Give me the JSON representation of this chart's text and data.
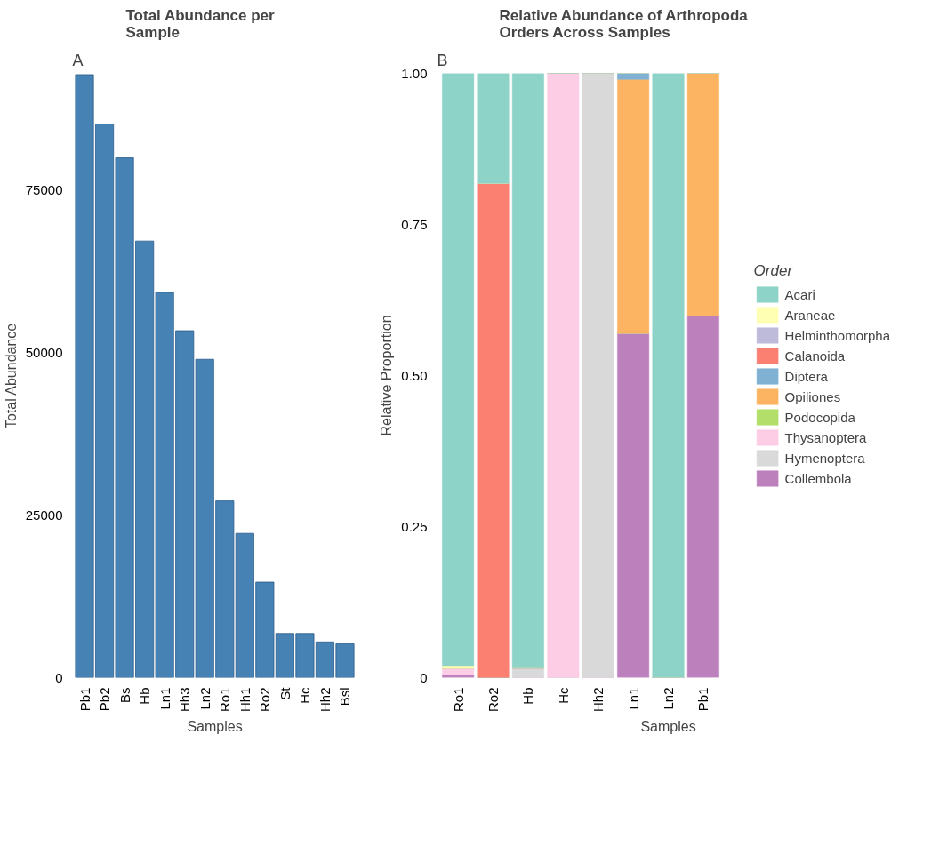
{
  "chart_data": [
    {
      "type": "bar",
      "title": "Total Abundance per Sample",
      "xlabel": "Samples",
      "ylabel": "Total Abundance",
      "annotations": [
        "A"
      ],
      "categories": [
        "Pb1",
        "Pb2",
        "Bs",
        "Hb",
        "Ln1",
        "Hh3",
        "Ln2",
        "Ro1",
        "Hh1",
        "Ro2",
        "St",
        "Hc",
        "Hh2",
        "Bsl"
      ],
      "values": [
        92800,
        85200,
        80000,
        67200,
        59300,
        53400,
        49000,
        27200,
        22200,
        14700,
        6800,
        6800,
        5500,
        5200
      ],
      "color": "#4682b4",
      "ylim": [
        0,
        93000
      ],
      "yticks": [
        0,
        25000,
        50000,
        75000
      ],
      "grid": false
    },
    {
      "type": "bar",
      "stacked": true,
      "title": "Relative Abundance of Arthropoda Orders Across Samples",
      "xlabel": "Samples",
      "ylabel": "Relative Proportion",
      "legend_title": "Order",
      "annotations": [
        "B"
      ],
      "categories": [
        "Ro1",
        "Ro2",
        "Hb",
        "Hc",
        "Hh2",
        "Ln1",
        "Ln2",
        "Pb1"
      ],
      "series": [
        {
          "name": "Collembola",
          "color": "#bc80bd",
          "values": [
            0.005,
            0,
            0,
            0,
            0,
            0.57,
            0,
            0.599
          ]
        },
        {
          "name": "Hymenoptera",
          "color": "#d9d9d9",
          "values": [
            0,
            0,
            0.016,
            0,
            1,
            0,
            0,
            0
          ]
        },
        {
          "name": "Thysanoptera",
          "color": "#fccde5",
          "values": [
            0.01,
            0,
            0,
            1,
            0,
            0,
            0,
            0
          ]
        },
        {
          "name": "Podocopida",
          "color": "#b3de69",
          "values": [
            0,
            0,
            0,
            0,
            0,
            0,
            0,
            0
          ]
        },
        {
          "name": "Opiliones",
          "color": "#fdb462",
          "values": [
            0,
            0,
            0,
            0,
            0,
            0.42,
            0,
            0.401
          ]
        },
        {
          "name": "Diptera",
          "color": "#80b1d3",
          "values": [
            0,
            0,
            0,
            0,
            0,
            0.01,
            0,
            0
          ]
        },
        {
          "name": "Calanoida",
          "color": "#fb8072",
          "values": [
            0,
            0.818,
            0,
            0,
            0,
            0,
            0,
            0
          ]
        },
        {
          "name": "Helminthomorpha",
          "color": "#bebada",
          "values": [
            0,
            0,
            0,
            0,
            0,
            0,
            0,
            0
          ]
        },
        {
          "name": "Araneae",
          "color": "#ffffb3",
          "values": [
            0.005,
            0,
            0,
            0,
            0,
            0,
            0,
            0
          ]
        },
        {
          "name": "Acari",
          "color": "#8dd3c7",
          "values": [
            0.98,
            0.182,
            0.984,
            0,
            0,
            0,
            1,
            0
          ]
        }
      ],
      "ylim": [
        0,
        1
      ],
      "yticks": [
        0,
        {
          "value": 0.25,
          "label": "0.25"
        },
        {
          "value": 0.5,
          "label": "0.50"
        },
        {
          "value": 0.75,
          "label": "0.75"
        },
        {
          "value": 1,
          "label": "1.00"
        }
      ],
      "grid": false,
      "legend": "right"
    }
  ]
}
